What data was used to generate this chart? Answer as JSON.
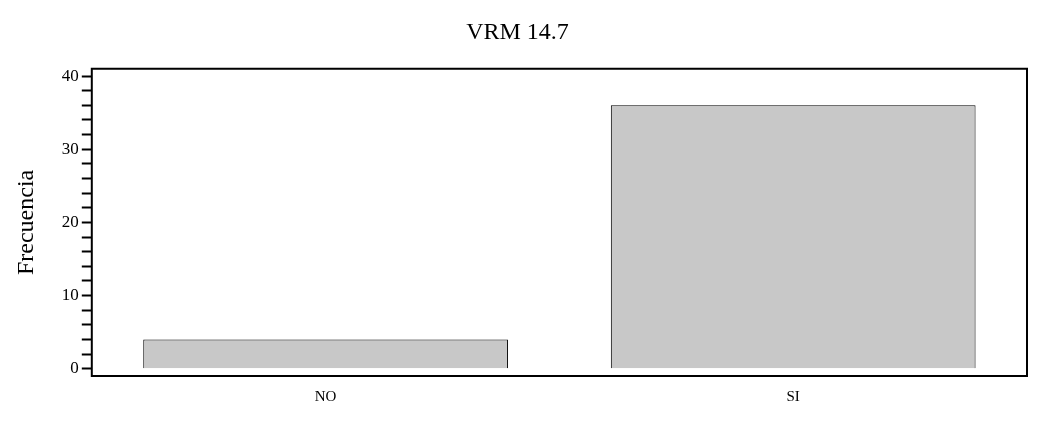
{
  "chart_data": {
    "type": "bar",
    "title": "VRM 14.7",
    "ylabel": "Frecuencia",
    "categories": [
      "NO",
      "SI"
    ],
    "values": [
      4,
      36
    ],
    "color": "#c8c8c8",
    "ylim": [
      -1,
      41
    ],
    "yticks": [
      0,
      {
        "value": 2,
        "label": null
      },
      {
        "value": 4,
        "label": null
      },
      {
        "value": 6,
        "label": null
      },
      {
        "value": 8,
        "label": null
      },
      10,
      {
        "value": 12,
        "label": null
      },
      {
        "value": 14,
        "label": null
      },
      {
        "value": 16,
        "label": null
      },
      {
        "value": 18,
        "label": null
      },
      20,
      {
        "value": 22,
        "label": null
      },
      {
        "value": 24,
        "label": null
      },
      {
        "value": 26,
        "label": null
      },
      {
        "value": 28,
        "label": null
      },
      30,
      {
        "value": 32,
        "label": null
      },
      {
        "value": 34,
        "label": null
      },
      {
        "value": 36,
        "label": null
      },
      {
        "value": 38,
        "label": null
      },
      40
    ],
    "grid": false,
    "legend": false
  }
}
